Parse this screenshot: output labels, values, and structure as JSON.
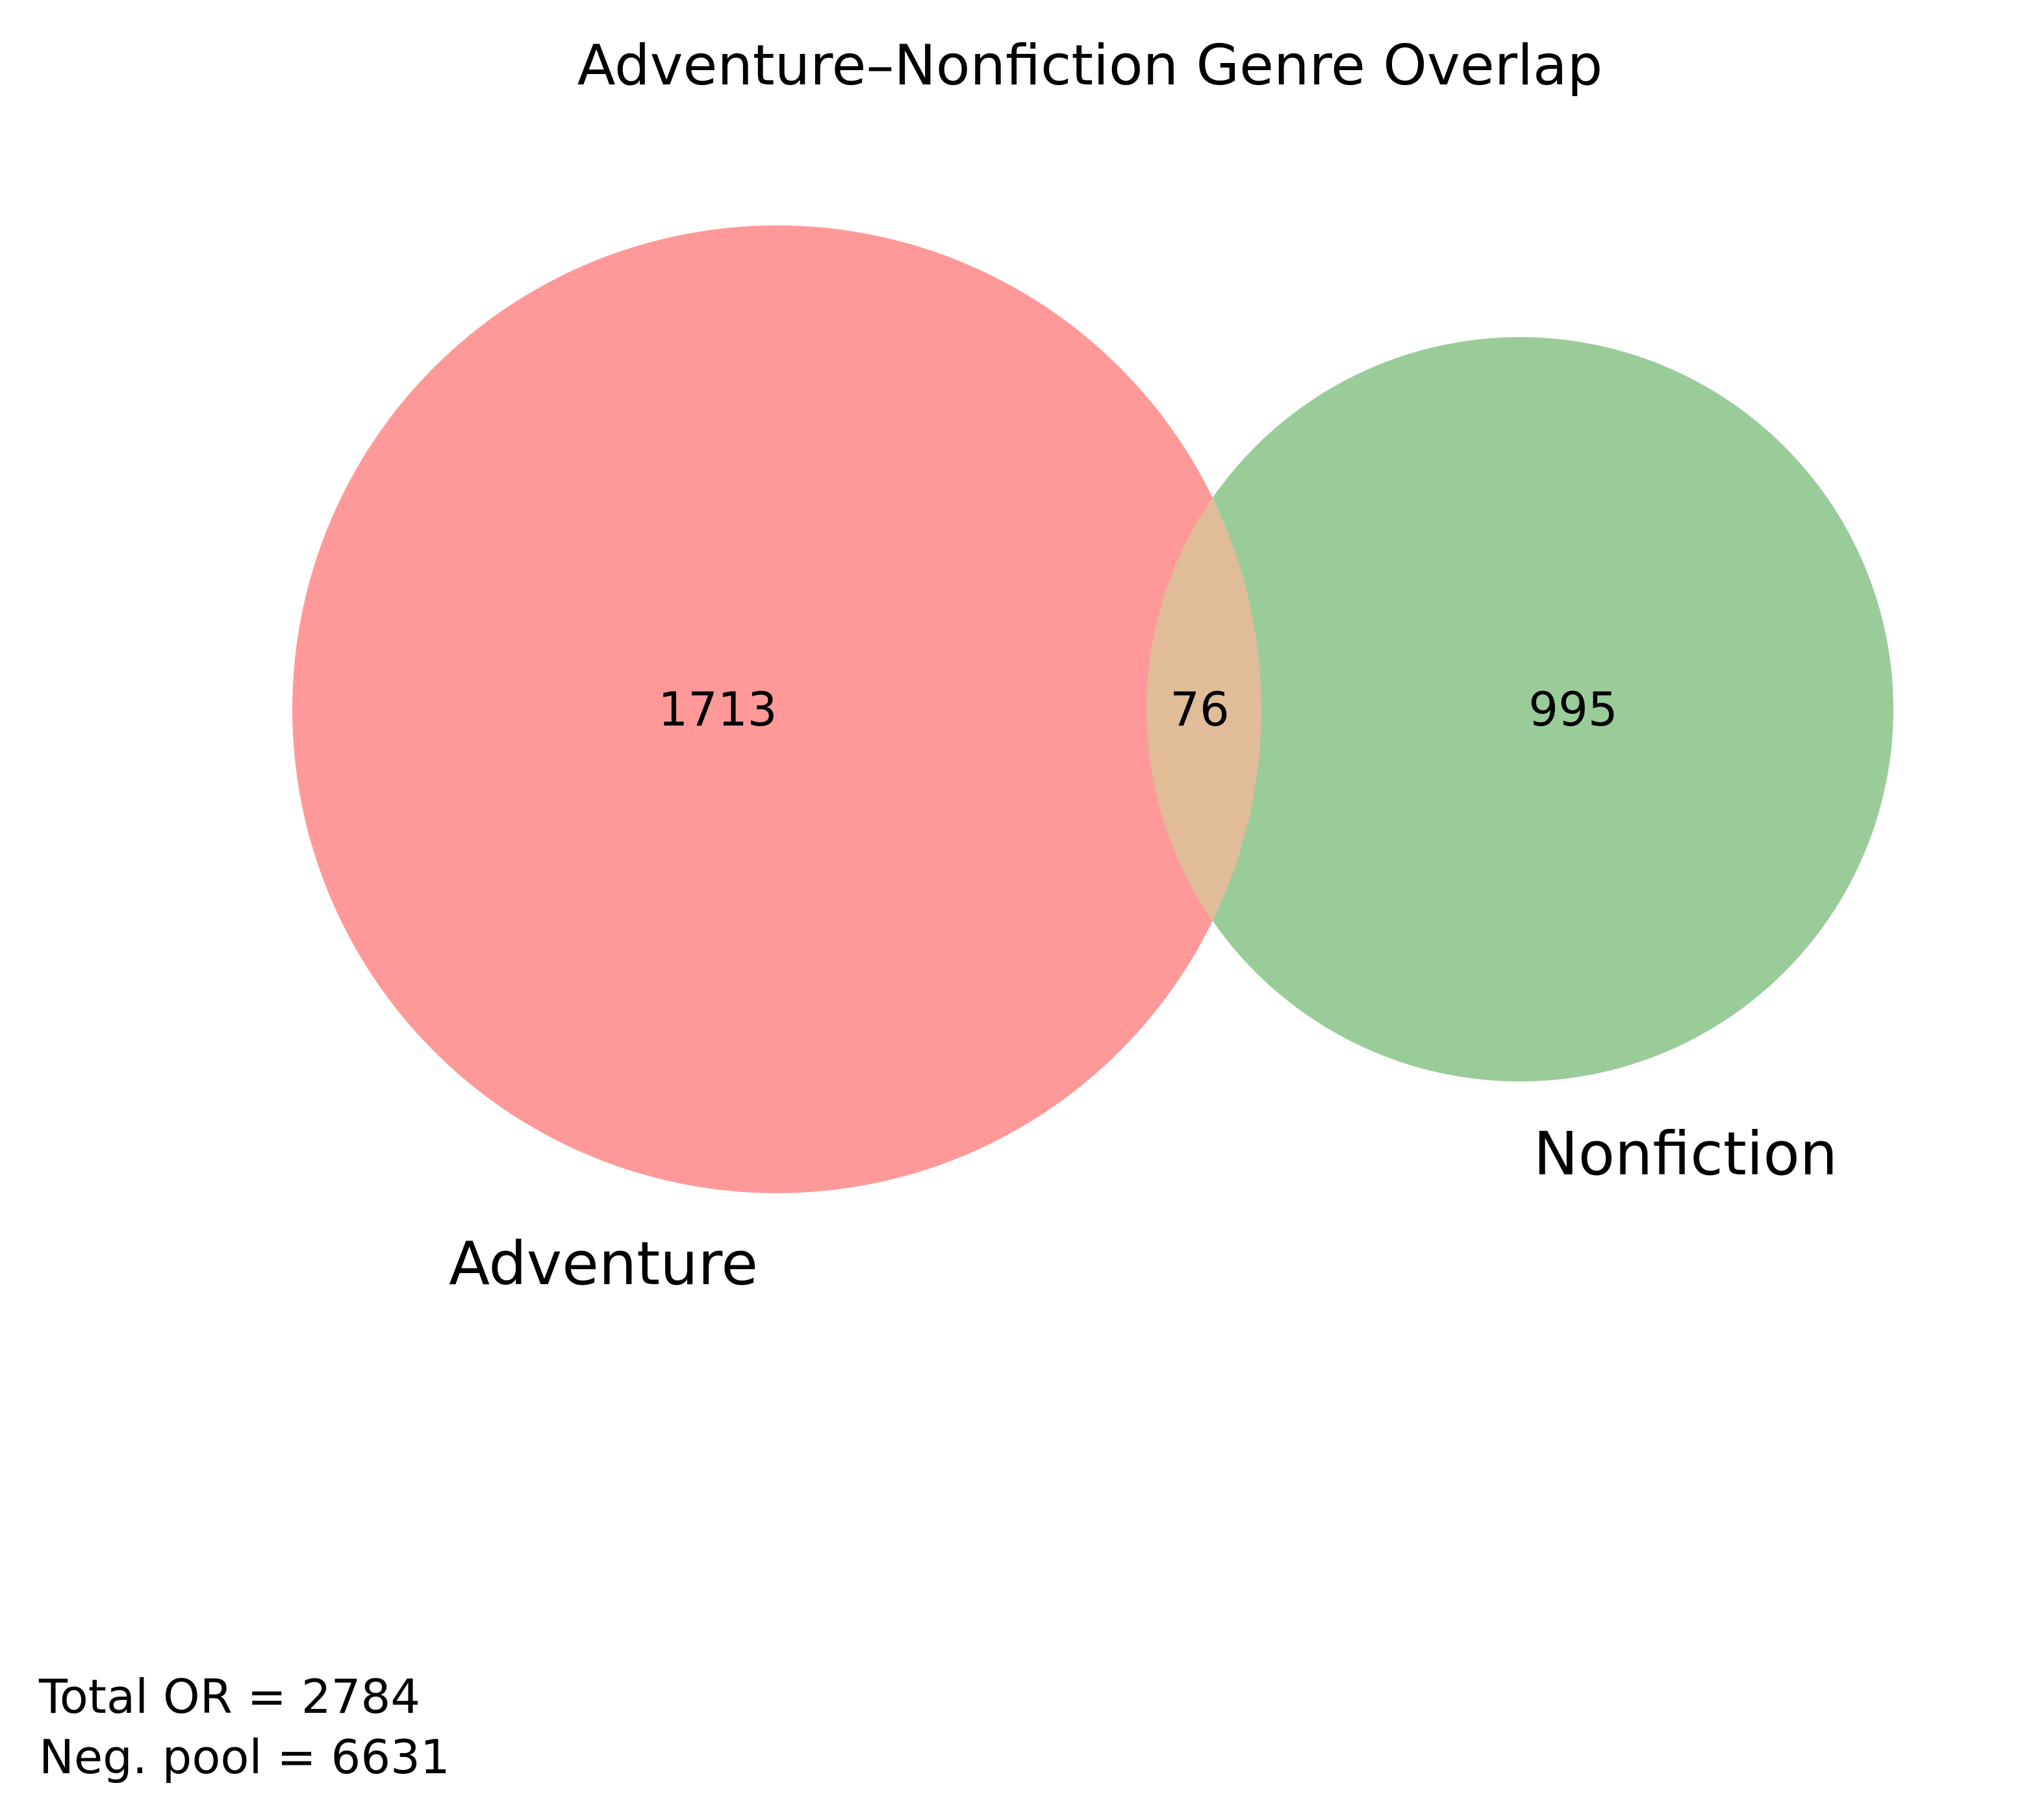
{
  "title": "Adventure–Nonfiction Genre Overlap",
  "venn": {
    "sets": [
      {
        "id": "adventure",
        "label": "Adventure",
        "only_count": "1713",
        "color": "#ff9999"
      },
      {
        "id": "nonfiction",
        "label": "Nonfiction",
        "only_count": "995",
        "color": "#99cc99"
      }
    ],
    "intersection": {
      "count": "76",
      "color": "#e0bc99"
    }
  },
  "footer": {
    "line1": "Total OR = 2784",
    "line2": "Neg. pool = 6631"
  }
}
